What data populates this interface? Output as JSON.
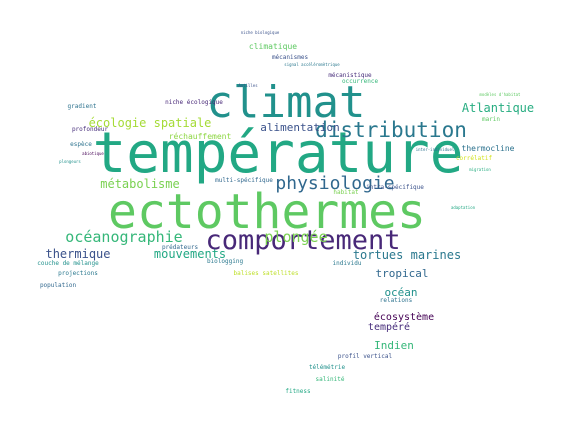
{
  "wordcloud": {
    "words": [
      {
        "text": "température",
        "color": "#22a884"
      },
      {
        "text": "ectothermes",
        "color": "#5ec962"
      },
      {
        "text": "climat",
        "color": "#21918c"
      },
      {
        "text": "comportement",
        "color": "#482878"
      },
      {
        "text": "distribution",
        "color": "#2a788e"
      },
      {
        "text": "physiologie",
        "color": "#31688e"
      },
      {
        "text": "océanographie",
        "color": "#35b779"
      },
      {
        "text": "plongée",
        "color": "#7ad151"
      },
      {
        "text": "Atlantique",
        "color": "#27ad81"
      },
      {
        "text": "écologie spatiale",
        "color": "#a5db36"
      },
      {
        "text": "métabolisme",
        "color": "#7ad151"
      },
      {
        "text": "thermique",
        "color": "#3b528b"
      },
      {
        "text": "mouvements",
        "color": "#22a884"
      },
      {
        "text": "tortues marines",
        "color": "#2a788e"
      },
      {
        "text": "alimentation",
        "color": "#3b528b"
      },
      {
        "text": "océan",
        "color": "#21918c"
      },
      {
        "text": "Indien",
        "color": "#35b779"
      },
      {
        "text": "tropical",
        "color": "#31688e"
      },
      {
        "text": "écosystème",
        "color": "#440154"
      },
      {
        "text": "tempéré",
        "color": "#472d7b"
      },
      {
        "text": "réchauffement",
        "color": "#8fd744"
      },
      {
        "text": "climatique",
        "color": "#5ec962"
      },
      {
        "text": "thermocline",
        "color": "#2c728e"
      },
      {
        "text": "prédateurs",
        "color": "#31688e"
      },
      {
        "text": "gradient",
        "color": "#2c728e"
      },
      {
        "text": "profondeur",
        "color": "#472d7b"
      },
      {
        "text": "individu",
        "color": "#2a788e"
      },
      {
        "text": "relations",
        "color": "#2c728e"
      },
      {
        "text": "profil vertical",
        "color": "#3b528b"
      },
      {
        "text": "télémétrie",
        "color": "#21918c"
      },
      {
        "text": "salinité",
        "color": "#35b779"
      },
      {
        "text": "fitness",
        "color": "#22a884"
      },
      {
        "text": "couche de mélange",
        "color": "#21918c"
      },
      {
        "text": "projections",
        "color": "#2a788e"
      },
      {
        "text": "population",
        "color": "#31688e"
      },
      {
        "text": "mécanismes",
        "color": "#3b528b"
      },
      {
        "text": "mécanistique",
        "color": "#472d7b"
      },
      {
        "text": "biologging",
        "color": "#2a788e"
      },
      {
        "text": "balises satellites",
        "color": "#bddf26"
      },
      {
        "text": "multi-spécifique",
        "color": "#31688e"
      },
      {
        "text": "niche écologique",
        "color": "#482878"
      },
      {
        "text": "migration",
        "color": "#27ad81"
      },
      {
        "text": "occurrence",
        "color": "#35b779"
      },
      {
        "text": "marin",
        "color": "#5ec962"
      },
      {
        "text": "espèce",
        "color": "#2c728e"
      },
      {
        "text": "habitat",
        "color": "#7ad151"
      },
      {
        "text": "corrélatif",
        "color": "#d2e21b"
      },
      {
        "text": "Antilles",
        "color": "#3b528b"
      },
      {
        "text": "adaptation",
        "color": "#22a884"
      },
      {
        "text": "plongeurs",
        "color": "#21918c"
      },
      {
        "text": "abiotique",
        "color": "#440154"
      },
      {
        "text": "modèles d'habitat",
        "color": "#5ec962"
      },
      {
        "text": "signal accéléromètrique",
        "color": "#2a788e"
      },
      {
        "text": "niche biologique",
        "color": "#3b528b"
      },
      {
        "text": "inter-individuel",
        "color": "#2c728e"
      },
      {
        "text": "intra-spécifique",
        "color": "#3b528b"
      }
    ]
  }
}
